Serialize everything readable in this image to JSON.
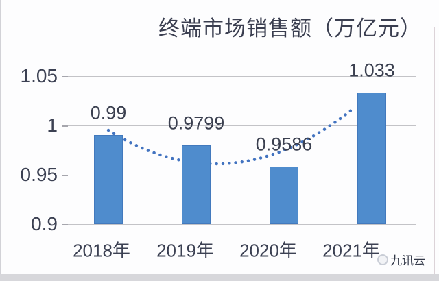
{
  "chart_data": {
    "type": "bar",
    "title": "终端市场销售额（万亿元）",
    "categories": [
      "2018年",
      "2019年",
      "2020年",
      "2021年"
    ],
    "values": [
      0.99,
      0.9799,
      0.9586,
      1.033
    ],
    "data_labels": [
      "0.99",
      "0.9799",
      "0.9586",
      "1.033"
    ],
    "xlabel": "",
    "ylabel": "",
    "y_axis": {
      "min": 0.9,
      "max": 1.05,
      "ticks": [
        {
          "value": 1.05,
          "label": "1.05"
        },
        {
          "value": 1.0,
          "label": "1"
        },
        {
          "value": 0.95,
          "label": "0.95"
        },
        {
          "value": 0.9,
          "label": "0.9"
        }
      ]
    },
    "grid": true,
    "legend": "none",
    "trendline": {
      "style": "dotted",
      "kind": "polynomial",
      "drawn_behind_bars": true
    },
    "colors": {
      "bar": "#4f8ccd",
      "bar_border": "#4279bd",
      "trendline": "#4273c0",
      "gridline": "#c3c3c7",
      "text": "#3c4153",
      "title_text": "#3a3e50"
    }
  },
  "watermark": {
    "label": "九讯云",
    "icon": "cloud-logo-icon"
  }
}
